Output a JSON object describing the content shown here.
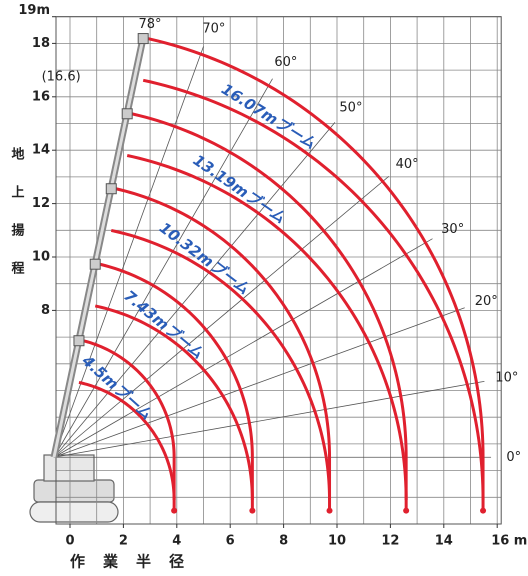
{
  "chart_data": {
    "type": "crane-range",
    "ylabel": "地上揚程",
    "xlabel": "作業半径",
    "xlim": [
      0,
      16
    ],
    "ylim": [
      0,
      19
    ],
    "xticks": [
      0,
      2,
      4,
      6,
      8,
      10,
      12,
      14,
      {
        "value": 16,
        "label": "16 m"
      }
    ],
    "yticks": [
      8,
      10,
      12,
      14,
      16,
      18,
      {
        "value": 19,
        "label": "19m"
      }
    ],
    "angles": [
      {
        "value": 78,
        "label": "78°"
      },
      {
        "value": 70,
        "label": "70°"
      },
      {
        "value": 60,
        "label": "60°"
      },
      {
        "value": 50,
        "label": "50°"
      },
      {
        "value": 40,
        "label": "40°"
      },
      {
        "value": 30,
        "label": "30°"
      },
      {
        "value": 20,
        "label": "20°"
      },
      {
        "value": 10,
        "label": "10°"
      },
      {
        "value": 0,
        "label": "0°"
      }
    ],
    "color": "#e0202e",
    "booms": [
      {
        "name": "4.5mブーム",
        "length": 4.5
      },
      {
        "name": "7.43mブーム",
        "length": 7.43
      },
      {
        "name": "10.32mブーム",
        "length": 10.32
      },
      {
        "name": "13.19mブーム",
        "length": 13.19
      },
      {
        "name": "16.07mブーム",
        "length": 16.07
      }
    ],
    "annotation": {
      "value": 16.6,
      "label": "(16.6)"
    }
  }
}
